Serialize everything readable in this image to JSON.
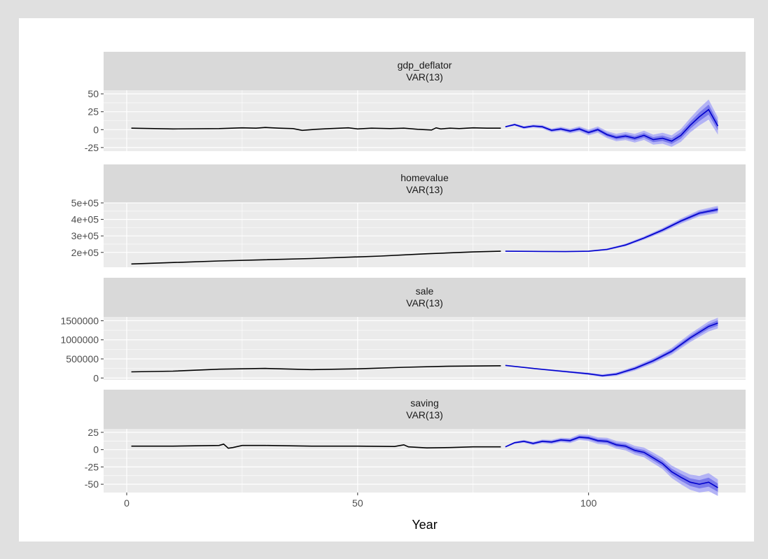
{
  "chart_data": {
    "type": "line",
    "xlabel": "Year",
    "x_ticks": [
      0,
      50,
      100
    ],
    "xlim": [
      -5,
      134
    ],
    "colors": {
      "history": "#000000",
      "forecast": "#0000cc",
      "band_outer": "#b3b3f5",
      "band_inner": "#7a7aec",
      "panel_bg": "#ebebeb",
      "strip_bg": "#d9d9d9",
      "grid": "#ffffff"
    },
    "panels": [
      {
        "name": "gdp_deflator",
        "model": "VAR(13)",
        "ylim": [
          -30,
          55
        ],
        "y_ticks": [
          -25,
          0,
          25,
          50
        ],
        "y_tick_labels": [
          "-25",
          "0",
          "25",
          "50"
        ],
        "history": {
          "x": [
            1,
            10,
            20,
            25,
            28,
            30,
            33,
            36,
            38,
            41,
            44,
            48,
            50,
            53,
            57,
            60,
            63,
            66,
            67,
            68,
            70,
            72,
            75,
            78,
            81
          ],
          "y": [
            2,
            1,
            1.5,
            2.5,
            2,
            3,
            2,
            1.5,
            -1,
            0.5,
            1.5,
            2.5,
            1,
            2,
            1.5,
            2,
            0.5,
            -0.5,
            2.5,
            1,
            2,
            1.5,
            2.5,
            2,
            2
          ]
        },
        "forecast": {
          "x": [
            82,
            84,
            86,
            88,
            90,
            92,
            94,
            96,
            98,
            100,
            102,
            104,
            106,
            108,
            110,
            112,
            114,
            116,
            118,
            120,
            122,
            124,
            126,
            128
          ],
          "y": [
            4,
            7,
            3,
            5,
            4,
            -1,
            1,
            -2,
            1,
            -4,
            0,
            -7,
            -11,
            -9,
            -12,
            -8,
            -14,
            -12,
            -16,
            -8,
            6,
            18,
            28,
            5
          ],
          "spread": [
            0.5,
            0.8,
            1,
            1,
            1.2,
            1.3,
            1.5,
            1.6,
            1.8,
            2,
            2.2,
            2.4,
            2.6,
            2.8,
            3,
            3.2,
            3.5,
            3.8,
            4,
            4.5,
            5,
            6,
            7,
            6
          ]
        }
      },
      {
        "name": "homevalue",
        "model": "VAR(13)",
        "ylim": [
          110000,
          500000
        ],
        "y_ticks": [
          200000,
          300000,
          400000,
          500000
        ],
        "y_tick_labels": [
          "2e+05",
          "3e+05",
          "4e+05",
          "5e+05"
        ],
        "history": {
          "x": [
            1,
            20,
            40,
            55,
            65,
            75,
            81
          ],
          "y": [
            130000,
            148000,
            163000,
            178000,
            192000,
            203000,
            207000
          ]
        },
        "forecast": {
          "x": [
            82,
            90,
            95,
            100,
            104,
            108,
            112,
            116,
            120,
            124,
            128
          ],
          "y": [
            207000,
            206000,
            205000,
            207000,
            218000,
            245000,
            287000,
            335000,
            390000,
            438000,
            460000
          ],
          "spread": [
            500,
            1000,
            1500,
            2000,
            3000,
            4000,
            5000,
            6500,
            8000,
            9500,
            11000
          ]
        }
      },
      {
        "name": "sale",
        "model": "VAR(13)",
        "ylim": [
          -50000,
          1600000
        ],
        "y_ticks": [
          0,
          500000,
          1000000,
          1500000
        ],
        "y_tick_labels": [
          "0",
          "500000",
          "1000000",
          "1500000"
        ],
        "history": {
          "x": [
            1,
            10,
            20,
            30,
            40,
            50,
            60,
            70,
            81
          ],
          "y": [
            160000,
            180000,
            230000,
            250000,
            220000,
            240000,
            280000,
            310000,
            320000
          ]
        },
        "forecast": {
          "x": [
            82,
            88,
            94,
            100,
            103,
            106,
            110,
            114,
            118,
            122,
            126,
            128
          ],
          "y": [
            330000,
            250000,
            180000,
            110000,
            60000,
            100000,
            250000,
            450000,
            700000,
            1050000,
            1350000,
            1440000
          ],
          "spread": [
            5000,
            8000,
            12000,
            15000,
            18000,
            22000,
            28000,
            35000,
            45000,
            55000,
            65000,
            70000
          ]
        }
      },
      {
        "name": "saving",
        "model": "VAR(13)",
        "ylim": [
          -62,
          30
        ],
        "y_ticks": [
          -50,
          -25,
          0,
          25
        ],
        "y_tick_labels": [
          "-50",
          "-25",
          "0",
          "25"
        ],
        "history": {
          "x": [
            1,
            10,
            20,
            21,
            22,
            23,
            25,
            30,
            40,
            50,
            58,
            60,
            61,
            65,
            70,
            75,
            81
          ],
          "y": [
            5,
            5,
            6,
            8,
            2,
            3,
            6,
            6,
            5,
            5,
            4.5,
            7,
            4,
            2.5,
            3,
            4,
            4
          ]
        },
        "forecast": {
          "x": [
            82,
            84,
            86,
            88,
            90,
            92,
            94,
            96,
            98,
            100,
            102,
            104,
            106,
            108,
            110,
            112,
            114,
            116,
            118,
            120,
            122,
            124,
            126,
            128
          ],
          "y": [
            4,
            10,
            12,
            9,
            12,
            11,
            14,
            13,
            18,
            17,
            13,
            12,
            7,
            5,
            -1,
            -4,
            -12,
            -20,
            -32,
            -40,
            -47,
            -50,
            -47,
            -55
          ],
          "spread": [
            0.5,
            0.8,
            1,
            1.2,
            1.3,
            1.5,
            1.6,
            1.8,
            2,
            2.2,
            2.4,
            2.6,
            2.8,
            3,
            3.2,
            3.5,
            3.8,
            4,
            4.5,
            5,
            5.5,
            6,
            6.5,
            6
          ]
        }
      }
    ]
  }
}
